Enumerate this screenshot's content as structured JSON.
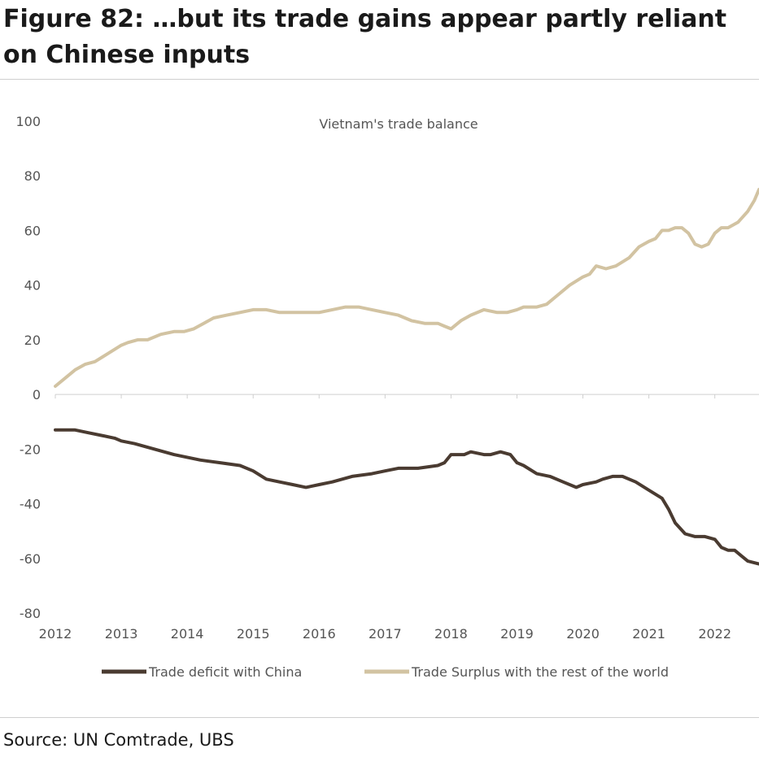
{
  "figure": {
    "title": "Figure 82: …but its trade gains appear partly reliant on Chinese inputs",
    "source": "Source: UN Comtrade, UBS"
  },
  "chart_data": {
    "type": "line",
    "title": "Vietnam's trade balance",
    "xlabel": "",
    "ylabel": "",
    "xlim": [
      2012.0,
      2022.67
    ],
    "ylim": [
      -80,
      100
    ],
    "y_ticks": [
      100,
      80,
      60,
      40,
      20,
      0,
      -20,
      -40,
      -60,
      -80
    ],
    "x_ticks": [
      "2012",
      "2013",
      "2014",
      "2015",
      "2016",
      "2017",
      "2018",
      "2019",
      "2020",
      "2021",
      "2022"
    ],
    "legend_position": "bottom",
    "grid": false,
    "series": [
      {
        "name": "Trade deficit with China",
        "color": "#4a3b31",
        "points": [
          [
            2012.0,
            -13
          ],
          [
            2012.3,
            -13
          ],
          [
            2012.5,
            -14
          ],
          [
            2012.7,
            -15
          ],
          [
            2012.9,
            -16
          ],
          [
            2013.0,
            -17
          ],
          [
            2013.2,
            -18
          ],
          [
            2013.5,
            -20
          ],
          [
            2013.8,
            -22
          ],
          [
            2014.0,
            -23
          ],
          [
            2014.2,
            -24
          ],
          [
            2014.5,
            -25
          ],
          [
            2014.8,
            -26
          ],
          [
            2015.0,
            -28
          ],
          [
            2015.2,
            -31
          ],
          [
            2015.4,
            -32
          ],
          [
            2015.6,
            -33
          ],
          [
            2015.8,
            -34
          ],
          [
            2016.0,
            -33
          ],
          [
            2016.2,
            -32
          ],
          [
            2016.5,
            -30
          ],
          [
            2016.8,
            -29
          ],
          [
            2017.0,
            -28
          ],
          [
            2017.2,
            -27
          ],
          [
            2017.5,
            -27
          ],
          [
            2017.8,
            -26
          ],
          [
            2017.9,
            -25
          ],
          [
            2018.0,
            -22
          ],
          [
            2018.2,
            -22
          ],
          [
            2018.3,
            -21
          ],
          [
            2018.5,
            -22
          ],
          [
            2018.6,
            -22
          ],
          [
            2018.75,
            -21
          ],
          [
            2018.9,
            -22
          ],
          [
            2019.0,
            -25
          ],
          [
            2019.1,
            -26
          ],
          [
            2019.3,
            -29
          ],
          [
            2019.5,
            -30
          ],
          [
            2019.7,
            -32
          ],
          [
            2019.9,
            -34
          ],
          [
            2020.0,
            -33
          ],
          [
            2020.2,
            -32
          ],
          [
            2020.3,
            -31
          ],
          [
            2020.45,
            -30
          ],
          [
            2020.6,
            -30
          ],
          [
            2020.8,
            -32
          ],
          [
            2021.0,
            -35
          ],
          [
            2021.2,
            -38
          ],
          [
            2021.3,
            -42
          ],
          [
            2021.4,
            -47
          ],
          [
            2021.55,
            -51
          ],
          [
            2021.7,
            -52
          ],
          [
            2021.85,
            -52
          ],
          [
            2022.0,
            -53
          ],
          [
            2022.1,
            -56
          ],
          [
            2022.2,
            -57
          ],
          [
            2022.3,
            -57
          ],
          [
            2022.4,
            -59
          ],
          [
            2022.5,
            -61
          ],
          [
            2022.67,
            -62
          ]
        ]
      },
      {
        "name": "Trade Surplus with the rest of the world",
        "color": "#d2c3a2",
        "points": [
          [
            2012.0,
            3
          ],
          [
            2012.15,
            6
          ],
          [
            2012.3,
            9
          ],
          [
            2012.45,
            11
          ],
          [
            2012.6,
            12
          ],
          [
            2012.8,
            15
          ],
          [
            2013.0,
            18
          ],
          [
            2013.1,
            19
          ],
          [
            2013.25,
            20
          ],
          [
            2013.4,
            20
          ],
          [
            2013.6,
            22
          ],
          [
            2013.8,
            23
          ],
          [
            2013.95,
            23
          ],
          [
            2014.1,
            24
          ],
          [
            2014.25,
            26
          ],
          [
            2014.4,
            28
          ],
          [
            2014.6,
            29
          ],
          [
            2014.8,
            30
          ],
          [
            2015.0,
            31
          ],
          [
            2015.2,
            31
          ],
          [
            2015.4,
            30
          ],
          [
            2015.6,
            30
          ],
          [
            2015.8,
            30
          ],
          [
            2016.0,
            30
          ],
          [
            2016.2,
            31
          ],
          [
            2016.4,
            32
          ],
          [
            2016.6,
            32
          ],
          [
            2016.8,
            31
          ],
          [
            2017.0,
            30
          ],
          [
            2017.2,
            29
          ],
          [
            2017.4,
            27
          ],
          [
            2017.6,
            26
          ],
          [
            2017.8,
            26
          ],
          [
            2017.9,
            25
          ],
          [
            2018.0,
            24
          ],
          [
            2018.15,
            27
          ],
          [
            2018.3,
            29
          ],
          [
            2018.5,
            31
          ],
          [
            2018.7,
            30
          ],
          [
            2018.85,
            30
          ],
          [
            2019.0,
            31
          ],
          [
            2019.1,
            32
          ],
          [
            2019.3,
            32
          ],
          [
            2019.45,
            33
          ],
          [
            2019.6,
            36
          ],
          [
            2019.8,
            40
          ],
          [
            2020.0,
            43
          ],
          [
            2020.1,
            44
          ],
          [
            2020.2,
            47
          ],
          [
            2020.35,
            46
          ],
          [
            2020.5,
            47
          ],
          [
            2020.7,
            50
          ],
          [
            2020.85,
            54
          ],
          [
            2021.0,
            56
          ],
          [
            2021.1,
            57
          ],
          [
            2021.2,
            60
          ],
          [
            2021.3,
            60
          ],
          [
            2021.4,
            61
          ],
          [
            2021.5,
            61
          ],
          [
            2021.6,
            59
          ],
          [
            2021.7,
            55
          ],
          [
            2021.8,
            54
          ],
          [
            2021.9,
            55
          ],
          [
            2022.0,
            59
          ],
          [
            2022.1,
            61
          ],
          [
            2022.2,
            61
          ],
          [
            2022.35,
            63
          ],
          [
            2022.5,
            67
          ],
          [
            2022.6,
            71
          ],
          [
            2022.67,
            75
          ]
        ]
      }
    ]
  }
}
